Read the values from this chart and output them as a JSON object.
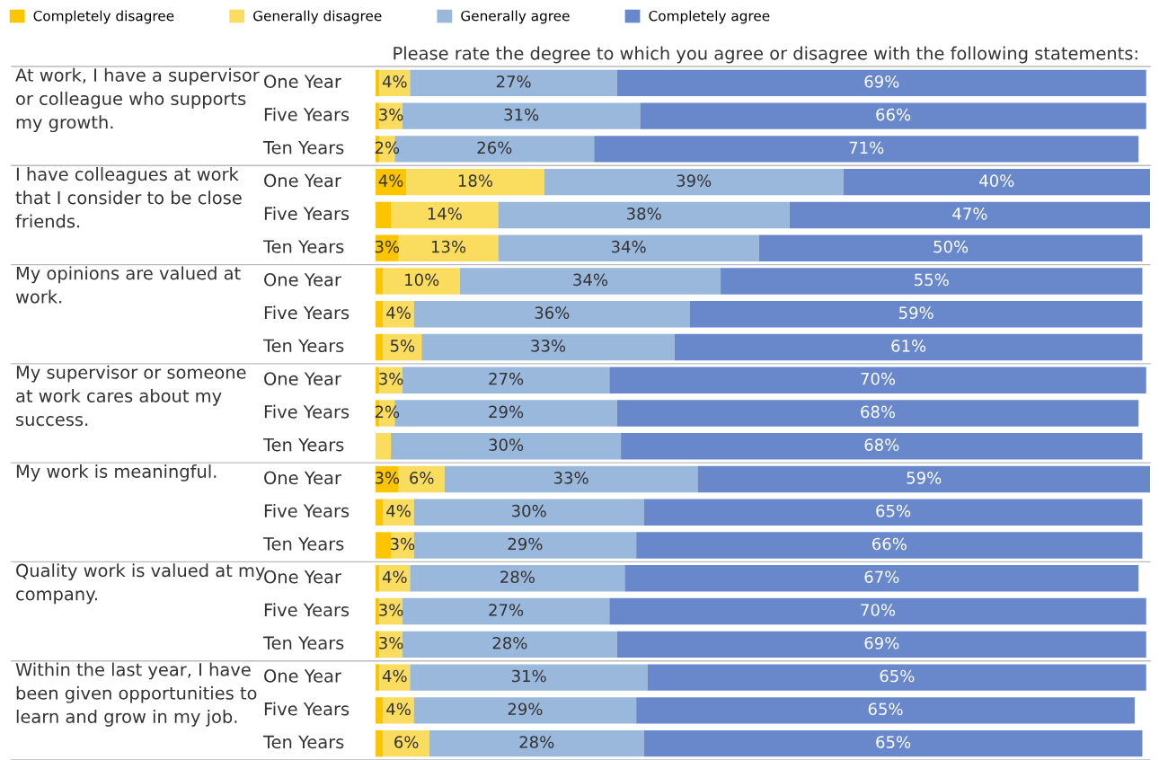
{
  "chart_data": {
    "type": "bar",
    "orientation": "horizontal",
    "stacked": true,
    "title": "Please rate the degree to which you agree or disagree with the following statements:",
    "categories": [
      "One Year",
      "Five Years",
      "Ten Years",
      "One Year",
      "Five Years",
      "Ten Years",
      "One Year",
      "Five Years",
      "Ten Years",
      "One Year",
      "Five Years",
      "Ten Years",
      "One Year",
      "Five Years",
      "Ten Years",
      "One Year",
      "Five Years",
      "Ten Years",
      "One Year",
      "Five Years",
      "Ten Years"
    ],
    "annotations": [
      "At work, I have a supervisor\nor colleague who supports\nmy growth.",
      "I have colleagues at work\nthat I consider to be close\nfriends.",
      "My opinions are valued at\nwork.",
      "My supervisor or someone\nat work cares about my\nsuccess.",
      "My work is meaningful.",
      "Quality work is valued at my\ncompany.",
      "Within the last year, I have\nbeen given opportunities to\nlearn and grow in my job."
    ],
    "xlim": [
      0,
      101
    ],
    "legend": "top left",
    "series": [
      {
        "name": "Completely disagree",
        "color": "#fcc500",
        "values": [
          0.5,
          0.5,
          0.5,
          4,
          2,
          3,
          1,
          1,
          1,
          0.5,
          0.5,
          0,
          3,
          1,
          2,
          0.5,
          0.5,
          0.5,
          0.5,
          1,
          1
        ],
        "value_labels": [
          null,
          null,
          null,
          "4%",
          null,
          "3%",
          null,
          null,
          null,
          null,
          null,
          null,
          "3%",
          null,
          null,
          null,
          null,
          null,
          null,
          null,
          null
        ]
      },
      {
        "name": "Generally disagree",
        "color": "#fadc5f",
        "values": [
          4,
          3,
          2,
          18,
          14,
          13,
          10,
          4,
          5,
          3,
          2,
          2,
          6,
          4,
          3,
          4,
          3,
          3,
          4,
          4,
          6
        ],
        "value_labels": [
          "4%",
          "3%",
          "2%",
          "18%",
          "14%",
          "13%",
          "10%",
          "4%",
          "5%",
          "3%",
          "2%",
          null,
          "6%",
          "4%",
          "3%",
          "4%",
          "3%",
          "3%",
          "4%",
          "4%",
          "6%"
        ]
      },
      {
        "name": "Generally agree",
        "color": "#9ab8dc",
        "values": [
          27,
          31,
          26,
          39,
          38,
          34,
          34,
          36,
          33,
          27,
          29,
          30,
          33,
          30,
          29,
          28,
          27,
          28,
          31,
          29,
          28
        ],
        "value_labels": [
          "27%",
          "31%",
          "26%",
          "39%",
          "38%",
          "34%",
          "34%",
          "36%",
          "33%",
          "27%",
          "29%",
          "30%",
          "33%",
          "30%",
          "29%",
          "28%",
          "27%",
          "28%",
          "31%",
          "29%",
          "28%"
        ]
      },
      {
        "name": "Completely agree",
        "color": "#6888cb",
        "values": [
          69,
          66,
          71,
          40,
          47,
          50,
          55,
          59,
          61,
          70,
          68,
          68,
          59,
          65,
          66,
          67,
          70,
          69,
          65,
          65,
          65
        ],
        "value_labels": [
          "69%",
          "66%",
          "71%",
          "40%",
          "47%",
          "50%",
          "55%",
          "59%",
          "61%",
          "70%",
          "68%",
          "68%",
          "59%",
          "65%",
          "66%",
          "67%",
          "70%",
          "69%",
          "65%",
          "65%",
          "65%"
        ]
      }
    ]
  }
}
